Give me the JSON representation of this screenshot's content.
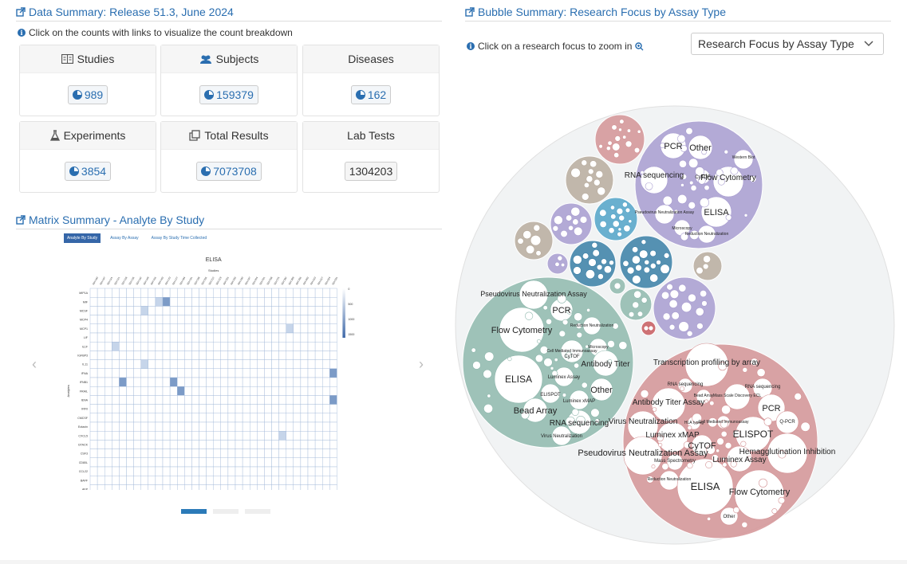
{
  "data_summary": {
    "title": "Data Summary: Release 51.3, June 2024",
    "hint": "Click on the counts with links to visualize the count breakdown",
    "cards": [
      {
        "label": "Studies",
        "icon": "book-icon",
        "value": "989",
        "link": true
      },
      {
        "label": "Subjects",
        "icon": "users-icon",
        "value": "159379",
        "link": true
      },
      {
        "label": "Diseases",
        "icon": "",
        "value": "162",
        "link": true
      },
      {
        "label": "Experiments",
        "icon": "flask-icon",
        "value": "3854",
        "link": true
      },
      {
        "label": "Total Results",
        "icon": "copy-icon",
        "value": "7073708",
        "link": true
      },
      {
        "label": "Lab Tests",
        "icon": "",
        "value": "1304203",
        "link": false
      }
    ]
  },
  "matrix_summary": {
    "title": "Matrix Summary - Analyte By Study",
    "tabs": [
      "Analyte By Study",
      "Assay By Assay",
      "Assay By Study Time Collected"
    ],
    "chart_title": "ELISA",
    "x_label": "Studies",
    "y_label": "Analytes",
    "rows": [
      "MIP1A",
      "MIF",
      "MCSF",
      "MCP4",
      "MCP1",
      "LIF",
      "IL1F",
      "IGFBP3",
      "IL11",
      "IFNA",
      "IFNB1",
      "FRAIL",
      "IENA",
      "IRF0",
      "CMCSF",
      "Eotaxin",
      "CXCL5",
      "GTACK",
      "CSF3",
      "CD80L",
      "CCL22",
      "BAFF",
      "AFP"
    ],
    "legend_ticks": [
      "0",
      "500",
      "1000",
      "1500"
    ]
  },
  "bubble_summary": {
    "title": "Bubble Summary: Research Focus by Assay Type",
    "hint": "Click on a research focus to zoom in",
    "select_value": "Research Focus by Assay Type"
  },
  "bubble_labels": {
    "purple": [
      "PCR",
      "Other",
      "Western Blot",
      "RNA sequencing",
      "CyTOF",
      "Flow Cytometry",
      "Pseudovirus Neutralization Assay",
      "ELISA",
      "Microscopy",
      "Reduction Neutralization"
    ],
    "teal": [
      "Pseudovirus Neutralization Assay",
      "PCR",
      "Flow Cytometry",
      "Reduction Neutralization",
      "Cell Mediated Immunoassay",
      "Microscopy",
      "CyTOF",
      "Antibody Titer",
      "ELISA",
      "Luminex Assay",
      "Other",
      "ELISPOT",
      "Luminex xMAP",
      "Bead Array",
      "RNA sequencing",
      "Virus Neutralization"
    ],
    "red": [
      "Transcription profiling by array",
      "RNA sequencing",
      "Antibody Titer Assay",
      "Bead Array",
      "Mass Scale Discovery ECL",
      "RNA sequencing",
      "PCR",
      "Q-PCR",
      "Virus Neutralization",
      "HLA typing",
      "Cell Mediated Immunoassay",
      "ELISPOT",
      "Luminex xMAP",
      "CyTOF",
      "Hemagglutination Inhibition",
      "Pseudovirus Neutralization Assay",
      "Mass Spectrometry",
      "Luminex Assay",
      "Reduction Neutralization",
      "ELISA",
      "Flow Cytometry",
      "Other"
    ]
  },
  "colors": {
    "accent": "#2a6eb0",
    "purple": "#a89cd0",
    "teal": "#8fb8ad",
    "red": "#d49395",
    "grey": "#b8ab9d"
  }
}
